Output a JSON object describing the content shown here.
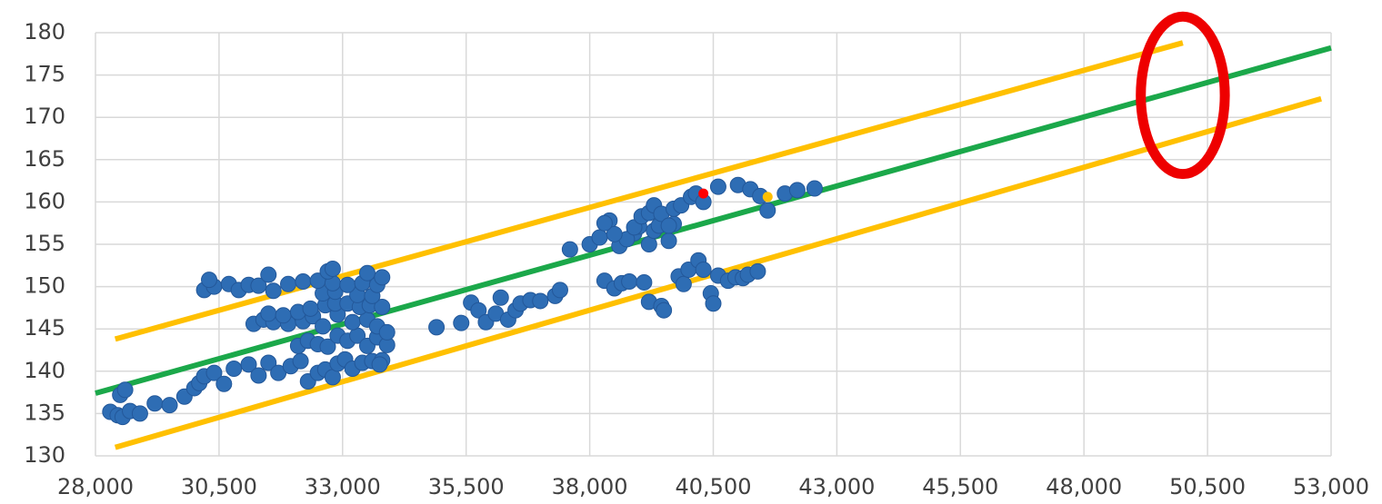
{
  "chart_data": {
    "type": "scatter",
    "title": "",
    "xlabel": "",
    "ylabel": "",
    "xlim": [
      28000,
      53000
    ],
    "ylim": [
      130,
      180
    ],
    "x_ticks": [
      28000,
      30500,
      33000,
      35500,
      38000,
      40500,
      43000,
      45500,
      48000,
      50500,
      53000
    ],
    "x_tick_labels": [
      "28,000",
      "30,500",
      "33,000",
      "35,500",
      "38,000",
      "40,500",
      "43,000",
      "45,500",
      "48,000",
      "50,500",
      "53,000"
    ],
    "y_ticks": [
      130,
      135,
      140,
      145,
      150,
      155,
      160,
      165,
      170,
      175,
      180
    ],
    "y_tick_labels": [
      "130",
      "135",
      "140",
      "145",
      "150",
      "155",
      "160",
      "165",
      "170",
      "175",
      "180"
    ],
    "grid": "vertical and horizontal",
    "colors": {
      "points": "#2E6DB4",
      "fit_line": "#1BA84A",
      "bound_lines": "#FFC000",
      "highlight_ellipse": "#EE0000",
      "highlight_point_red": "#FF0000",
      "highlight_point_yellow": "#FFC000"
    },
    "series": [
      {
        "type": "scatter",
        "points": [
          [
            28300,
            135.2
          ],
          [
            28450,
            134.8
          ],
          [
            28550,
            134.6
          ],
          [
            28700,
            135.3
          ],
          [
            28900,
            135.0
          ],
          [
            29200,
            136.2
          ],
          [
            29500,
            136.0
          ],
          [
            29800,
            137.0
          ],
          [
            28500,
            137.2
          ],
          [
            28600,
            137.8
          ],
          [
            30000,
            138.0
          ],
          [
            30100,
            138.6
          ],
          [
            30200,
            139.4
          ],
          [
            30400,
            139.8
          ],
          [
            30600,
            138.5
          ],
          [
            30800,
            140.3
          ],
          [
            31100,
            140.8
          ],
          [
            31300,
            139.5
          ],
          [
            31500,
            141.0
          ],
          [
            31700,
            139.8
          ],
          [
            31950,
            140.6
          ],
          [
            32150,
            141.2
          ],
          [
            32300,
            138.8
          ],
          [
            32500,
            139.8
          ],
          [
            32650,
            140.2
          ],
          [
            32800,
            139.3
          ],
          [
            32900,
            140.9
          ],
          [
            33050,
            141.4
          ],
          [
            33200,
            140.3
          ],
          [
            33400,
            141.0
          ],
          [
            33600,
            141.2
          ],
          [
            33800,
            141.3
          ],
          [
            33750,
            140.8
          ],
          [
            32100,
            143.0
          ],
          [
            32300,
            143.6
          ],
          [
            32500,
            143.2
          ],
          [
            32700,
            142.9
          ],
          [
            32900,
            144.2
          ],
          [
            33100,
            143.6
          ],
          [
            33300,
            144.2
          ],
          [
            33500,
            143.0
          ],
          [
            33700,
            144.0
          ],
          [
            33900,
            143.1
          ],
          [
            31200,
            145.6
          ],
          [
            31400,
            146.1
          ],
          [
            31600,
            145.8
          ],
          [
            31900,
            145.6
          ],
          [
            32200,
            145.9
          ],
          [
            32400,
            146.5
          ],
          [
            32600,
            145.3
          ],
          [
            32900,
            146.7
          ],
          [
            33200,
            145.8
          ],
          [
            33500,
            146.1
          ],
          [
            33700,
            145.3
          ],
          [
            33900,
            144.6
          ],
          [
            31500,
            146.8
          ],
          [
            31800,
            146.6
          ],
          [
            32100,
            147.0
          ],
          [
            32350,
            147.4
          ],
          [
            32650,
            147.8
          ],
          [
            32850,
            148.0
          ],
          [
            33100,
            148.0
          ],
          [
            33350,
            147.6
          ],
          [
            33550,
            147.8
          ],
          [
            33800,
            147.6
          ],
          [
            32600,
            149.2
          ],
          [
            32850,
            149.4
          ],
          [
            33300,
            149.0
          ],
          [
            33600,
            148.9
          ],
          [
            30200,
            149.6
          ],
          [
            30400,
            150.0
          ],
          [
            30700,
            150.3
          ],
          [
            30900,
            149.6
          ],
          [
            31100,
            150.2
          ],
          [
            31300,
            150.1
          ],
          [
            31600,
            149.5
          ],
          [
            31900,
            150.3
          ],
          [
            32200,
            150.6
          ],
          [
            32500,
            150.7
          ],
          [
            32800,
            150.4
          ],
          [
            33100,
            150.2
          ],
          [
            33400,
            150.4
          ],
          [
            33700,
            150.2
          ],
          [
            30300,
            150.8
          ],
          [
            31500,
            151.4
          ],
          [
            32700,
            151.8
          ],
          [
            32800,
            152.1
          ],
          [
            33500,
            151.6
          ],
          [
            33800,
            151.1
          ],
          [
            34900,
            145.2
          ],
          [
            35400,
            145.7
          ],
          [
            35600,
            148.1
          ],
          [
            35750,
            147.2
          ],
          [
            35900,
            145.8
          ],
          [
            36100,
            146.8
          ],
          [
            36200,
            148.7
          ],
          [
            36350,
            146.1
          ],
          [
            36500,
            147.2
          ],
          [
            36600,
            148.0
          ],
          [
            36800,
            148.4
          ],
          [
            37000,
            148.3
          ],
          [
            37300,
            148.9
          ],
          [
            37400,
            149.6
          ],
          [
            37600,
            154.4
          ],
          [
            38000,
            155.0
          ],
          [
            38200,
            155.8
          ],
          [
            38300,
            150.7
          ],
          [
            38500,
            149.8
          ],
          [
            38650,
            150.4
          ],
          [
            38800,
            150.6
          ],
          [
            38900,
            156.3
          ],
          [
            39000,
            157.1
          ],
          [
            39100,
            150.5
          ],
          [
            39200,
            155.0
          ],
          [
            39300,
            156.6
          ],
          [
            39400,
            157.2
          ],
          [
            39200,
            148.2
          ],
          [
            39450,
            147.7
          ],
          [
            39500,
            147.2
          ],
          [
            39600,
            155.4
          ],
          [
            39700,
            157.4
          ],
          [
            39800,
            151.2
          ],
          [
            39900,
            150.3
          ],
          [
            40000,
            152.0
          ],
          [
            40200,
            153.1
          ],
          [
            40300,
            152.0
          ],
          [
            40450,
            149.2
          ],
          [
            40500,
            148.0
          ],
          [
            40600,
            151.3
          ],
          [
            40800,
            150.7
          ],
          [
            40950,
            151.1
          ],
          [
            41100,
            151.0
          ],
          [
            41200,
            151.4
          ],
          [
            41400,
            151.8
          ],
          [
            38600,
            154.8
          ],
          [
            38750,
            155.6
          ],
          [
            38900,
            157.0
          ],
          [
            39050,
            158.3
          ],
          [
            39200,
            158.7
          ],
          [
            39300,
            159.6
          ],
          [
            39450,
            158.6
          ],
          [
            39600,
            157.2
          ],
          [
            38400,
            157.8
          ],
          [
            38500,
            156.2
          ],
          [
            38300,
            157.5
          ],
          [
            39700,
            159.2
          ],
          [
            39850,
            159.6
          ],
          [
            40050,
            160.6
          ],
          [
            40150,
            161.0
          ],
          [
            40300,
            160.0
          ],
          [
            40600,
            161.8
          ],
          [
            41000,
            162.0
          ],
          [
            41250,
            161.5
          ],
          [
            41450,
            160.7
          ],
          [
            41600,
            159.0
          ],
          [
            41950,
            161.0
          ],
          [
            42200,
            161.4
          ],
          [
            42550,
            161.6
          ]
        ]
      },
      {
        "type": "line",
        "role": "fit",
        "points": [
          [
            28000,
            137.4
          ],
          [
            53000,
            178.2
          ]
        ]
      },
      {
        "type": "line",
        "role": "upper-bound",
        "points": [
          [
            28400,
            143.8
          ],
          [
            50000,
            178.8
          ]
        ]
      },
      {
        "type": "line",
        "role": "lower-bound",
        "points": [
          [
            28400,
            131.0
          ],
          [
            52800,
            172.2
          ]
        ]
      }
    ],
    "highlighted_points": [
      {
        "x": 40300,
        "y": 161.0,
        "color": "#FF0000"
      },
      {
        "x": 41600,
        "y": 160.6,
        "color": "#FFC000"
      }
    ],
    "annotation": {
      "shape": "ellipse",
      "center": [
        50000,
        172.6
      ],
      "radius_x": 850,
      "radius_y": 9.3,
      "color": "#EE0000"
    }
  }
}
